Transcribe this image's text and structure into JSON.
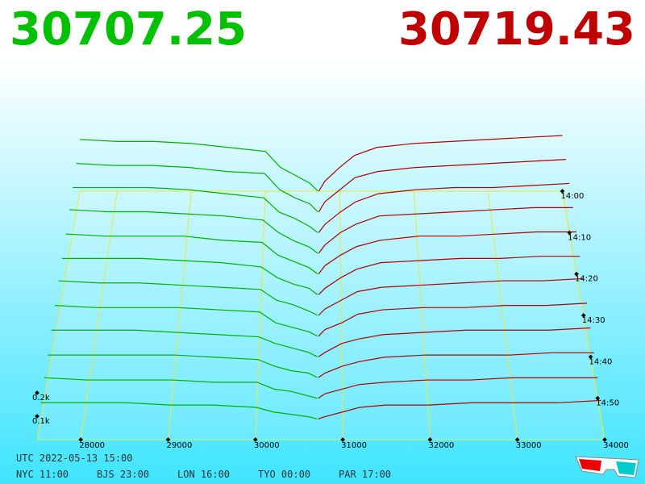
{
  "chart_data": {
    "type": "depth3d",
    "bid_price": 30707.25,
    "ask_price": 30719.43,
    "bid_color": "#00b000",
    "ask_color": "#b00000",
    "xlim": [
      27500,
      34000
    ],
    "xticks": [
      28000,
      29000,
      30000,
      31000,
      32000,
      33000,
      34000
    ],
    "time_lim": [
      0,
      60
    ],
    "time_ticks": [
      {
        "value": 0,
        "label": "14:00"
      },
      {
        "value": 10,
        "label": "14:10"
      },
      {
        "value": 20,
        "label": "14:20"
      },
      {
        "value": 30,
        "label": "14:30"
      },
      {
        "value": 40,
        "label": "14:40"
      },
      {
        "value": 50,
        "label": "14:50"
      }
    ],
    "volume_ticks": [
      {
        "value": 0.1,
        "label": "0.1k"
      },
      {
        "value": 0.2,
        "label": "0.2k"
      }
    ],
    "bid_prices": [
      27500,
      28000,
      28500,
      29000,
      29500,
      30000,
      30200,
      30400,
      30600,
      30707
    ],
    "ask_prices": [
      30719,
      30800,
      31000,
      31200,
      31500,
      32000,
      32500,
      33000,
      33500,
      34000
    ],
    "snapshots": [
      {
        "minute": 0,
        "bid": [
          0.26,
          0.25,
          0.25,
          0.24,
          0.22,
          0.2,
          0.12,
          0.08,
          0.04,
          0
        ],
        "ask": [
          0,
          0.05,
          0.12,
          0.18,
          0.22,
          0.24,
          0.25,
          0.26,
          0.27,
          0.28
        ]
      },
      {
        "minute": 5,
        "bid": [
          0.24,
          0.23,
          0.23,
          0.22,
          0.2,
          0.19,
          0.11,
          0.07,
          0.04,
          0
        ],
        "ask": [
          0,
          0.05,
          0.11,
          0.17,
          0.2,
          0.22,
          0.23,
          0.24,
          0.25,
          0.26
        ]
      },
      {
        "minute": 10,
        "bid": [
          0.22,
          0.22,
          0.22,
          0.21,
          0.19,
          0.17,
          0.1,
          0.07,
          0.03,
          0
        ],
        "ask": [
          0,
          0.04,
          0.1,
          0.15,
          0.19,
          0.21,
          0.22,
          0.22,
          0.23,
          0.24
        ]
      },
      {
        "minute": 15,
        "bid": [
          0.21,
          0.2,
          0.2,
          0.19,
          0.18,
          0.16,
          0.1,
          0.06,
          0.03,
          0
        ],
        "ask": [
          0,
          0.04,
          0.1,
          0.14,
          0.18,
          0.19,
          0.2,
          0.21,
          0.22,
          0.22
        ]
      },
      {
        "minute": 20,
        "bid": [
          0.19,
          0.18,
          0.18,
          0.18,
          0.16,
          0.15,
          0.09,
          0.06,
          0.03,
          0
        ],
        "ask": [
          0,
          0.04,
          0.09,
          0.13,
          0.16,
          0.18,
          0.18,
          0.19,
          0.2,
          0.2
        ]
      },
      {
        "minute": 25,
        "bid": [
          0.17,
          0.17,
          0.17,
          0.16,
          0.15,
          0.13,
          0.08,
          0.05,
          0.03,
          0
        ],
        "ask": [
          0,
          0.03,
          0.08,
          0.12,
          0.15,
          0.16,
          0.17,
          0.17,
          0.18,
          0.18
        ]
      },
      {
        "minute": 30,
        "bid": [
          0.16,
          0.15,
          0.15,
          0.14,
          0.13,
          0.12,
          0.07,
          0.05,
          0.02,
          0
        ],
        "ask": [
          0,
          0.03,
          0.07,
          0.11,
          0.13,
          0.14,
          0.15,
          0.16,
          0.16,
          0.17
        ]
      },
      {
        "minute": 35,
        "bid": [
          0.14,
          0.13,
          0.13,
          0.13,
          0.12,
          0.11,
          0.06,
          0.04,
          0.02,
          0
        ],
        "ask": [
          0,
          0.03,
          0.06,
          0.1,
          0.12,
          0.13,
          0.13,
          0.14,
          0.14,
          0.15
        ]
      },
      {
        "minute": 40,
        "bid": [
          0.12,
          0.12,
          0.12,
          0.11,
          0.1,
          0.09,
          0.06,
          0.04,
          0.02,
          0
        ],
        "ask": [
          0,
          0.02,
          0.06,
          0.08,
          0.1,
          0.11,
          0.12,
          0.12,
          0.12,
          0.13
        ]
      },
      {
        "minute": 45,
        "bid": [
          0.1,
          0.1,
          0.1,
          0.1,
          0.09,
          0.08,
          0.05,
          0.03,
          0.02,
          0
        ],
        "ask": [
          0,
          0.02,
          0.05,
          0.07,
          0.09,
          0.1,
          0.1,
          0.1,
          0.11,
          0.11
        ]
      },
      {
        "minute": 50,
        "bid": [
          0.09,
          0.08,
          0.08,
          0.08,
          0.07,
          0.07,
          0.04,
          0.03,
          0.01,
          0
        ],
        "ask": [
          0,
          0.02,
          0.04,
          0.06,
          0.07,
          0.08,
          0.08,
          0.09,
          0.09,
          0.09
        ]
      },
      {
        "minute": 55,
        "bid": [
          0.07,
          0.07,
          0.07,
          0.06,
          0.06,
          0.05,
          0.03,
          0.02,
          0.01,
          0
        ],
        "ask": [
          0,
          0.01,
          0.03,
          0.05,
          0.06,
          0.06,
          0.07,
          0.07,
          0.07,
          0.08
        ]
      }
    ],
    "footer_utc": "UTC 2022-05-13 15:00",
    "footer_cities": [
      "NYC 11:00",
      "BJS 23:00",
      "LON 16:00",
      "TYO 00:00",
      "PAR 17:00"
    ]
  }
}
